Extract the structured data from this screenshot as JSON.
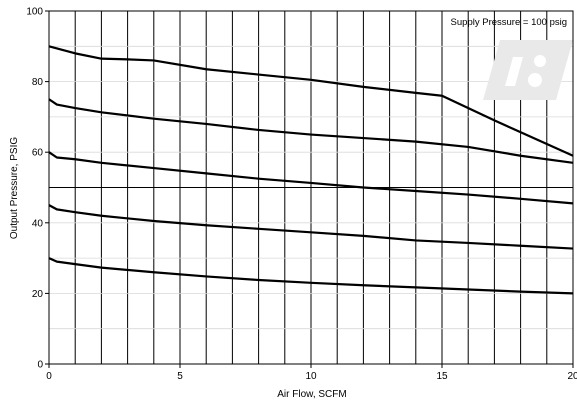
{
  "chart_data": {
    "type": "line",
    "xlabel": "Air Flow, SCFM",
    "ylabel": "Output Pressure, PSIG",
    "xlim": [
      0,
      20
    ],
    "ylim": [
      0,
      100
    ],
    "x_ticks": [
      {
        "value": 0,
        "label": "0"
      },
      {
        "value": 5,
        "label": "5"
      },
      {
        "value": 10,
        "label": "10"
      },
      {
        "value": 15,
        "label": "15"
      },
      {
        "value": 20,
        "label": "20"
      }
    ],
    "y_ticks": [
      {
        "value": 0,
        "label": "0"
      },
      {
        "value": 20,
        "label": "20"
      },
      {
        "value": 40,
        "label": "40"
      },
      {
        "value": 60,
        "label": "60"
      },
      {
        "value": 80,
        "label": "80"
      },
      {
        "value": 100,
        "label": "100"
      }
    ],
    "grid": {
      "vertical_lines_every": 1,
      "horizontal_lines_every": 10,
      "emphasized_line_y": 50
    },
    "annotation": "Supply Pressure = 100 psig",
    "series": [
      {
        "x": [
          0,
          0.5,
          1,
          2,
          3,
          4,
          6,
          8,
          10,
          12,
          14,
          15,
          17,
          20
        ],
        "y": [
          90,
          89,
          88,
          86.5,
          86.3,
          86,
          83.5,
          82,
          80.5,
          78.5,
          76.8,
          76,
          69,
          59
        ]
      },
      {
        "x": [
          0,
          0.3,
          1,
          2,
          4,
          6,
          8,
          10,
          12,
          14,
          16,
          18,
          20
        ],
        "y": [
          75,
          73.5,
          72.5,
          71.3,
          69.5,
          68,
          66.3,
          65,
          64,
          63,
          61.5,
          59,
          57
        ]
      },
      {
        "x": [
          0,
          0.3,
          1,
          2,
          4,
          6,
          8,
          10,
          12,
          14,
          16,
          18,
          20
        ],
        "y": [
          60,
          58.5,
          58,
          57,
          55.5,
          54,
          52.5,
          51.3,
          50,
          49,
          48,
          46.8,
          45.5
        ]
      },
      {
        "x": [
          0,
          0.3,
          1,
          2,
          4,
          6,
          8,
          10,
          12,
          14,
          16,
          18,
          20
        ],
        "y": [
          45,
          43.8,
          43,
          42,
          40.5,
          39.3,
          38.3,
          37.3,
          36.3,
          35,
          34.3,
          33.5,
          32.7
        ]
      },
      {
        "x": [
          0,
          0.3,
          1,
          2,
          4,
          6,
          8,
          10,
          12,
          14,
          16,
          18,
          20
        ],
        "y": [
          30,
          29,
          28.3,
          27.3,
          26,
          24.8,
          23.8,
          23,
          22.3,
          21.7,
          21.1,
          20.5,
          20
        ]
      }
    ]
  }
}
